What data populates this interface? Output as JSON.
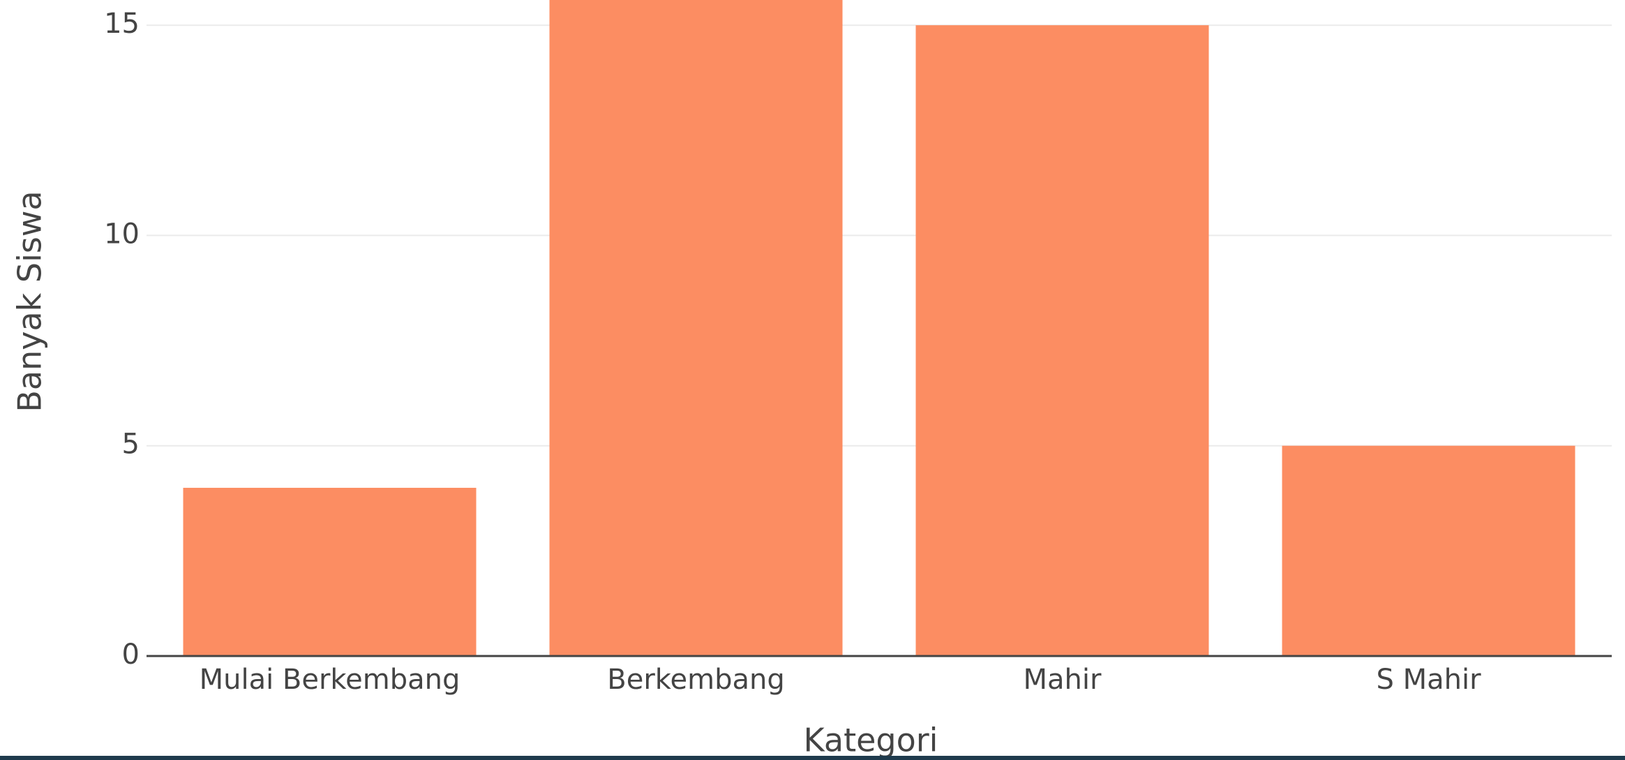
{
  "chart_data": {
    "type": "bar",
    "x_label": "Kategori",
    "y_label": "Banyak Siswa",
    "categories": [
      "Mulai Berkembang",
      "Berkembang",
      "Mahir",
      "S Mahir"
    ],
    "values": [
      4,
      16,
      15,
      5
    ],
    "color": "#fc8d62",
    "ylim": [
      0,
      15.6
    ],
    "yticks": [
      0,
      5,
      10,
      15
    ],
    "grid": true
  }
}
